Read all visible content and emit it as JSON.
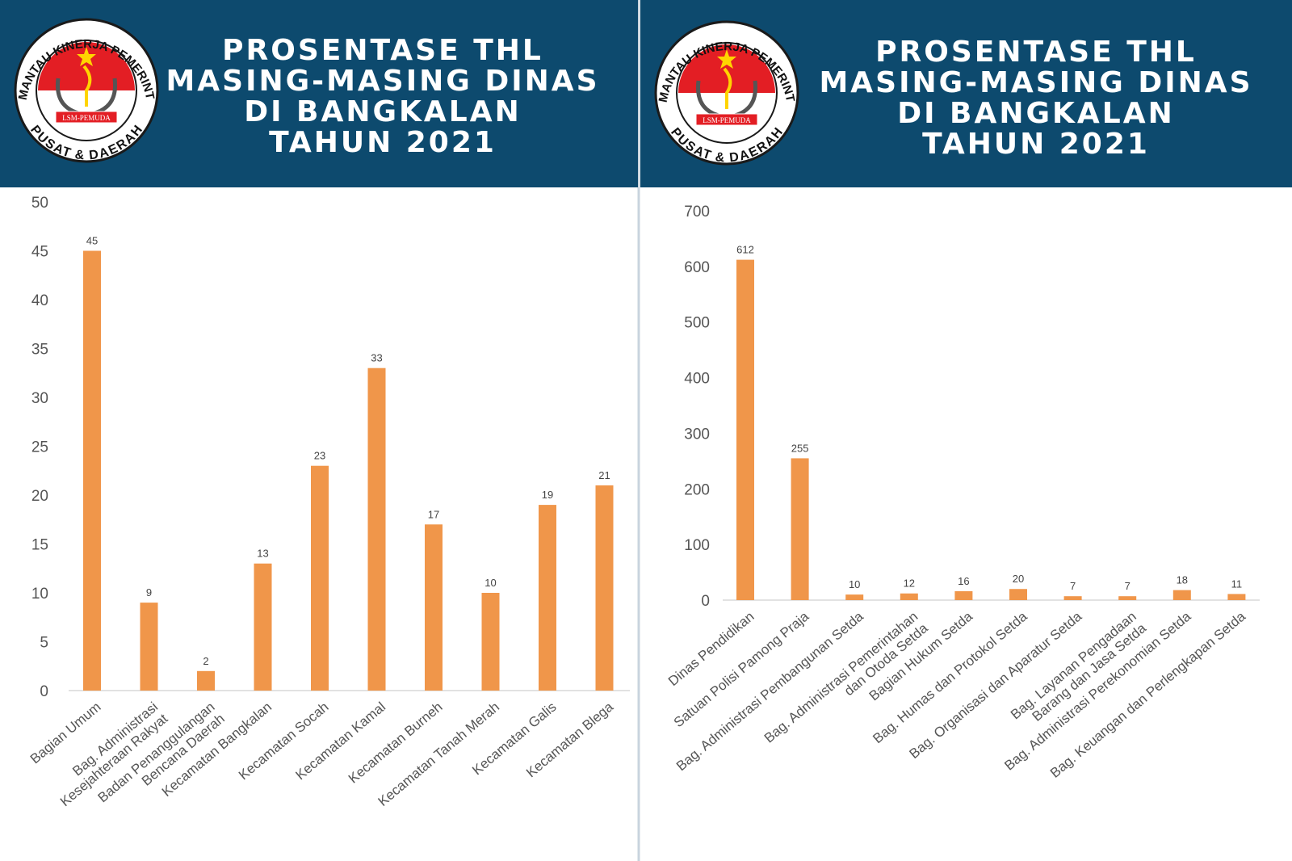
{
  "chart_data": [
    {
      "type": "bar",
      "title": "PROSENTASE THL\nMASING-MASING DINAS\nDI BANGKALAN\nTAHUN 2021",
      "logo": {
        "top": "PEMANTAU KINERJA PEMERINTAH",
        "banner": "LSM-PEMUDA",
        "bottom": "PUSAT & DAERAH"
      },
      "categories": [
        "Bagian Umum",
        "Bag. Administrasi\nKesejahteraan Rakyat",
        "Badan Penanggulangan\nBencana Daerah",
        "Kecamatan Bangkalan",
        "Kecamatan Socah",
        "Kecamatan Kamal",
        "Kecamatan Burneh",
        "Kecamatan Tanah Merah",
        "Kecamatan Galis",
        "Kecamatan Blega"
      ],
      "values": [
        45,
        9,
        2,
        13,
        23,
        33,
        17,
        10,
        19,
        21
      ],
      "color": "#f0964a",
      "ylim": [
        0,
        50
      ],
      "yticks": [
        0,
        5,
        10,
        15,
        20,
        25,
        30,
        35,
        40,
        45,
        50
      ],
      "grid": false
    },
    {
      "type": "bar",
      "title": "PROSENTASE THL\nMASING-MASING DINAS\nDI BANGKALAN\nTAHUN 2021",
      "logo": {
        "top": "PEMANTAU KINERJA PEMERINTAH",
        "banner": "LSM-PEMUDA",
        "bottom": "PUSAT & DAERAH"
      },
      "categories": [
        "Dinas Pendidikan",
        "Satuan Polisi Pamong Praja",
        "Bag. Administrasi Pembangunan Setda",
        "Bag. Administrasi Pemerintahan\ndan Otoda Setda",
        "Bagian Hukum Setda",
        "Bag. Humas dan Protokol Setda",
        "Bag. Organisasi dan Aparatur Setda",
        "Bag. Layanan Pengadaan\nBarang dan Jasa Setda",
        "Bag. Administrasi Perekonomian Setda",
        "Bag. Keuangan dan Perlengkapan Setda"
      ],
      "values": [
        612,
        255,
        10,
        12,
        16,
        20,
        7,
        7,
        18,
        11
      ],
      "color": "#f0964a",
      "ylim": [
        0,
        700
      ],
      "yticks": [
        0,
        100,
        200,
        300,
        400,
        500,
        600,
        700
      ],
      "grid": false
    }
  ]
}
